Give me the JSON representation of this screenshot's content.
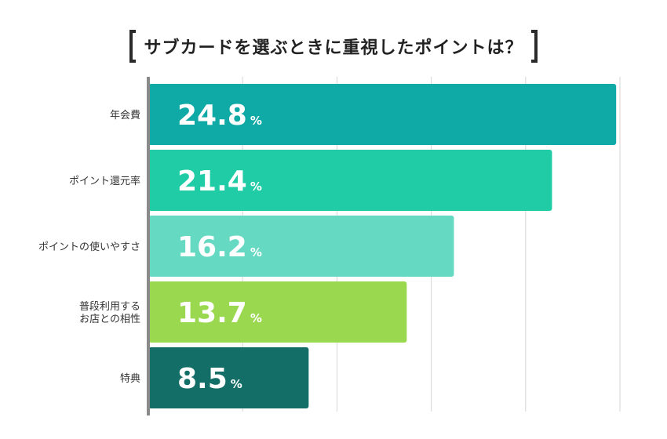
{
  "chart_data": {
    "type": "bar",
    "orientation": "horizontal",
    "title": "サブカードを選ぶときに重視したポイントは？",
    "categories": [
      [
        "年会費"
      ],
      [
        "ポイント還元率"
      ],
      [
        "ポイントの使いやすさ"
      ],
      [
        "普段利用する",
        "お店との相性"
      ],
      [
        "特典"
      ]
    ],
    "values": [
      24.8,
      21.4,
      16.2,
      13.7,
      8.5
    ],
    "value_labels": [
      "24.8",
      "21.4",
      "16.2",
      "13.7",
      "8.5"
    ],
    "unit": "%",
    "bar_colors": [
      "#0fa9a6",
      "#1fcca6",
      "#66d9c3",
      "#9ad84f",
      "#126e66"
    ],
    "xlim": [
      0,
      25
    ],
    "grid": true,
    "legend": "none"
  }
}
